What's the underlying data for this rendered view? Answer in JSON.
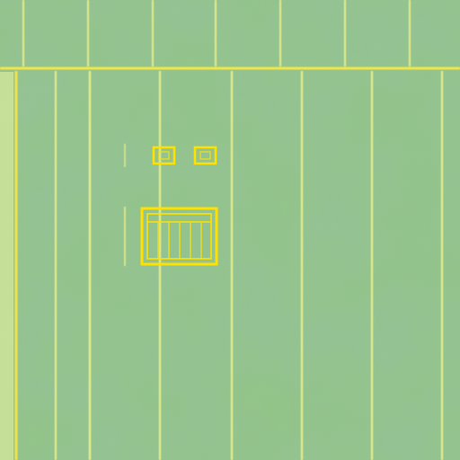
{
  "image": {
    "subject": "aerial-field",
    "text": []
  },
  "colors": {
    "field_base": "#8dc47e",
    "field_dark": "#6ea56f",
    "field_light": "#b6dc8c",
    "strip_left": "#cfe49a",
    "line_yellow": "#f2e64a",
    "line_pale": "#e8ee8c",
    "feature_yellow": "#ffe100"
  }
}
